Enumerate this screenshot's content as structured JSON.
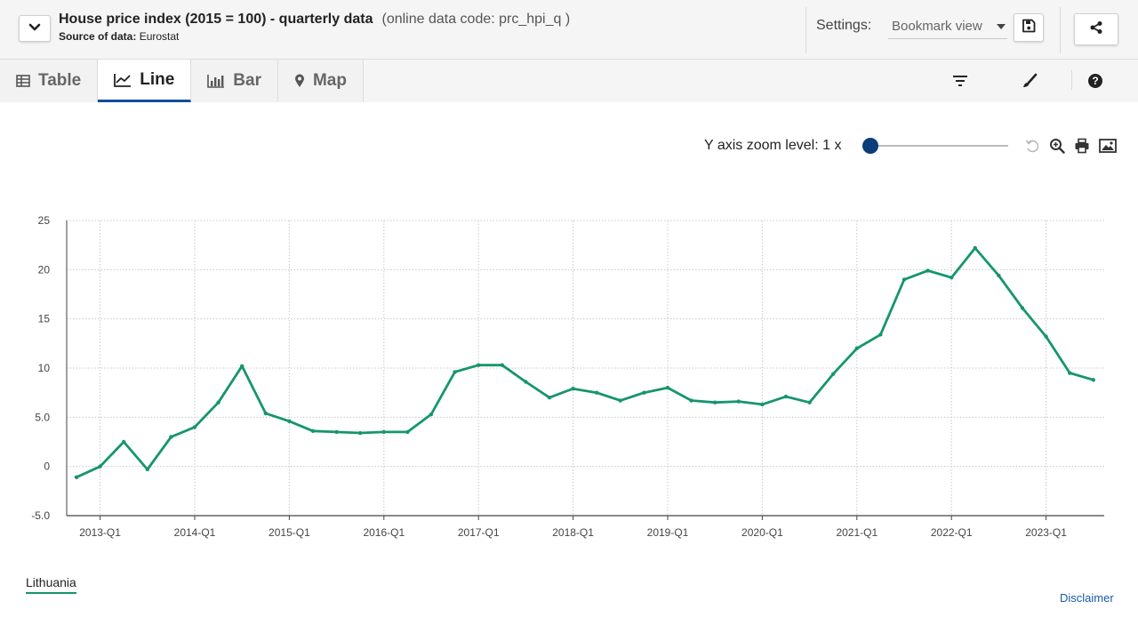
{
  "header": {
    "title": "House price index (2015 = 100) - quarterly data",
    "code": "(online data code: prc_hpi_q )",
    "source_label": "Source of data:",
    "source_value": "Eurostat",
    "settings_label": "Settings:",
    "settings_value": "Bookmark view"
  },
  "tabs": [
    {
      "label": "Table",
      "icon": "table-icon"
    },
    {
      "label": "Line",
      "icon": "line-chart-icon"
    },
    {
      "label": "Bar",
      "icon": "bar-chart-icon"
    },
    {
      "label": "Map",
      "icon": "map-pin-icon"
    }
  ],
  "zoom": {
    "label": "Y axis zoom level: 1 x",
    "level": 1
  },
  "legend_label": "Lithuania",
  "disclaimer": "Disclaimer",
  "colors": {
    "series": "#16956f",
    "accent": "#0b4fa0",
    "knob": "#0b3d7a",
    "link": "#1a5aa8"
  },
  "chart_data": {
    "type": "line",
    "title": "",
    "xlabel": "",
    "ylabel": "",
    "ylim": [
      -5,
      25
    ],
    "yticks": [
      "-5.0",
      "0",
      "5.0",
      "10",
      "15",
      "20",
      "25"
    ],
    "xticks": [
      "2013-Q1",
      "2014-Q1",
      "2015-Q1",
      "2016-Q1",
      "2017-Q1",
      "2018-Q1",
      "2019-Q1",
      "2020-Q1",
      "2021-Q1",
      "2022-Q1",
      "2023-Q1"
    ],
    "grid": true,
    "legend": "bottom-left",
    "x": [
      "2012-Q4",
      "2013-Q1",
      "2013-Q2",
      "2013-Q3",
      "2013-Q4",
      "2014-Q1",
      "2014-Q2",
      "2014-Q3",
      "2014-Q4",
      "2015-Q1",
      "2015-Q2",
      "2015-Q3",
      "2015-Q4",
      "2016-Q1",
      "2016-Q2",
      "2016-Q3",
      "2016-Q4",
      "2017-Q1",
      "2017-Q2",
      "2017-Q3",
      "2017-Q4",
      "2018-Q1",
      "2018-Q2",
      "2018-Q3",
      "2018-Q4",
      "2019-Q1",
      "2019-Q2",
      "2019-Q3",
      "2019-Q4",
      "2020-Q1",
      "2020-Q2",
      "2020-Q3",
      "2020-Q4",
      "2021-Q1",
      "2021-Q2",
      "2021-Q3",
      "2021-Q4",
      "2022-Q1",
      "2022-Q2",
      "2022-Q3",
      "2022-Q4",
      "2023-Q1",
      "2023-Q2",
      "2023-Q3"
    ],
    "series": [
      {
        "name": "Lithuania",
        "values": [
          -1.1,
          0.0,
          2.5,
          -0.3,
          3.0,
          4.0,
          6.5,
          10.2,
          5.4,
          4.6,
          3.6,
          3.5,
          3.4,
          3.5,
          3.5,
          5.3,
          9.6,
          10.3,
          10.3,
          8.6,
          7.0,
          7.9,
          7.5,
          6.7,
          7.5,
          8.0,
          6.7,
          6.5,
          6.6,
          6.3,
          7.1,
          6.5,
          9.4,
          12.0,
          13.4,
          19.0,
          19.9,
          19.2,
          22.2,
          19.4,
          16.1,
          13.2,
          9.5,
          8.8
        ]
      }
    ]
  }
}
